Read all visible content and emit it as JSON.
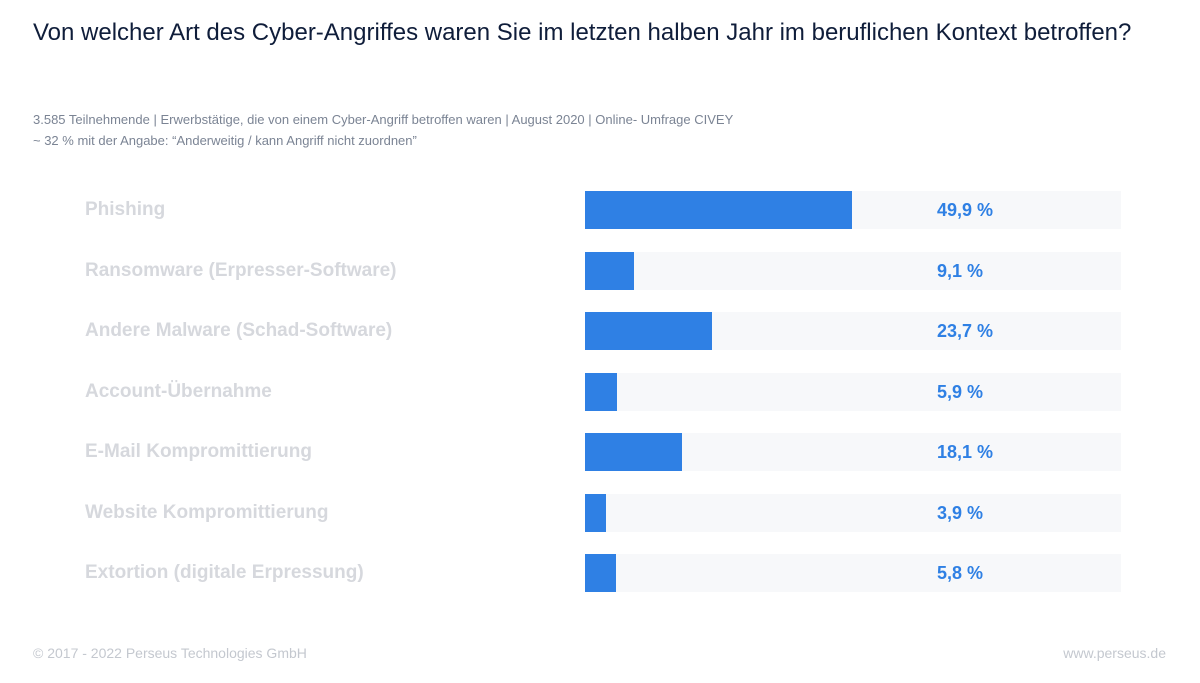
{
  "header": {
    "title": "Von welcher Art des Cyber-Angriffes waren Sie im letzten halben Jahr im beruflichen Kontext betroffen?",
    "meta_line1": "3.585 Teilnehmende | Erwerbstätige, die von einem Cyber-Angriff betroffen waren | August 2020 | Online- Umfrage CIVEY",
    "meta_line2": "~ 32 % mit der Angabe: “Anderweitig / kann Angriff nicht zuordnen”"
  },
  "chart_data": {
    "type": "bar",
    "orientation": "horizontal",
    "categories": [
      "Phishing",
      "Ransomware (Erpresser-Software)",
      "Andere Malware (Schad-Software)",
      "Account-Übernahme",
      "E-Mail Kompromittierung",
      "Website Kompromittierung",
      "Extortion (digitale Erpressung)"
    ],
    "values": [
      49.9,
      9.1,
      23.7,
      5.9,
      18.1,
      3.9,
      5.8
    ],
    "value_labels": [
      "49,9 %",
      "9,1 %",
      "23,7 %",
      "5,9 %",
      "18,1 %",
      "3,9 %",
      "5,8 %"
    ],
    "xlim": [
      0,
      100
    ],
    "grid": false,
    "colors": {
      "bar": "#2f80e4",
      "track": "#f7f8fa",
      "category_text": "#d6d8dd"
    }
  },
  "footer": {
    "copyright": "© 2017 - 2022 Perseus Technologies GmbH",
    "website": "www.perseus.de"
  }
}
